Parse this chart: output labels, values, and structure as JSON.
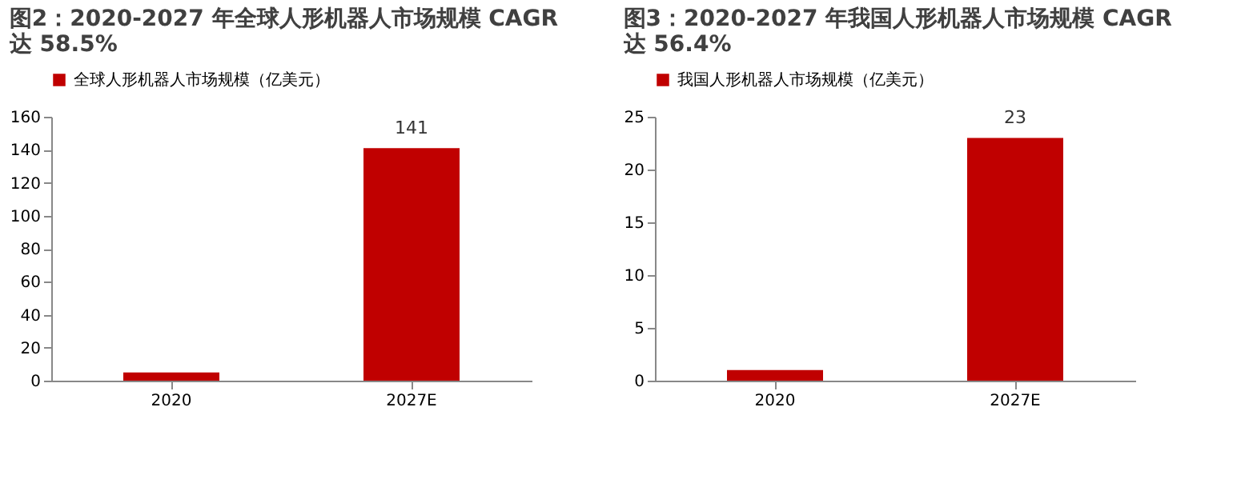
{
  "chart_data": [
    {
      "type": "bar",
      "title": [
        "图2：2020-2027 年全球人形机器人市场规模 CAGR",
        "达 58.5%"
      ],
      "categories": [
        "2020",
        "2027E"
      ],
      "series": [
        {
          "name": "全球人形机器人市场规模（亿美元）",
          "color": "#c00000",
          "values": [
            5,
            141
          ],
          "value_labels": [
            null,
            "141"
          ]
        }
      ],
      "ylim": [
        0,
        160
      ],
      "yticks": [
        0,
        20,
        40,
        60,
        80,
        100,
        120,
        140,
        160
      ],
      "grid": false,
      "legend": "top"
    },
    {
      "type": "bar",
      "title": [
        "图3：2020-2027 年我国人形机器人市场规模 CAGR",
        "达 56.4%"
      ],
      "categories": [
        "2020",
        "2027E"
      ],
      "series": [
        {
          "name": "我国人形机器人市场规模（亿美元）",
          "color": "#c00000",
          "values": [
            1,
            23
          ],
          "value_labels": [
            null,
            "23"
          ]
        }
      ],
      "ylim": [
        0,
        25
      ],
      "yticks": [
        0,
        5,
        10,
        15,
        20,
        25
      ],
      "grid": false,
      "legend": "top"
    }
  ]
}
